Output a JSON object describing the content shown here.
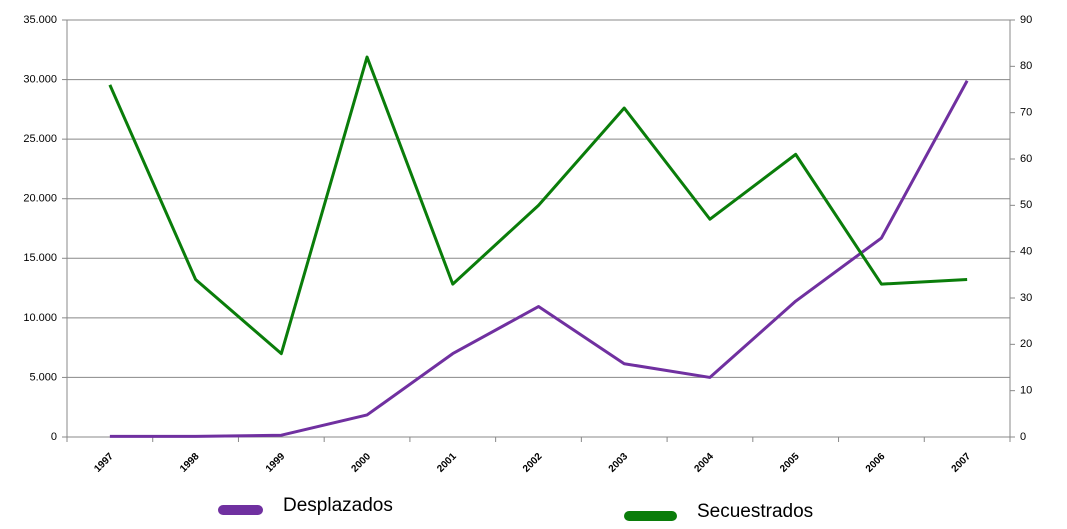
{
  "chart_data": {
    "type": "line",
    "categories": [
      "1997",
      "1998",
      "1999",
      "2000",
      "2001",
      "2002",
      "2003",
      "2004",
      "2005",
      "2006",
      "2007"
    ],
    "series": [
      {
        "name": "Desplazados",
        "color": "#7030a0",
        "values": [
          50,
          50,
          150,
          1850,
          7000,
          10950,
          6150,
          5000,
          11400,
          16700,
          29900
        ]
      },
      {
        "name": "Secuestrados",
        "color": "#0a7d0a",
        "axis": "y2",
        "values": [
          76,
          34,
          18,
          82,
          33,
          50,
          71,
          47,
          61,
          33,
          34
        ]
      }
    ],
    "ylim": [
      0,
      35000
    ],
    "yticks": [
      0,
      {
        "value": 5000,
        "label": "5.000"
      },
      {
        "value": 10000,
        "label": "10.000"
      },
      {
        "value": 15000,
        "label": "15.000"
      },
      {
        "value": 20000,
        "label": "20.000"
      },
      {
        "value": 25000,
        "label": "25.000"
      },
      {
        "value": 30000,
        "label": "30.000"
      },
      {
        "value": 35000,
        "label": "35.000"
      }
    ],
    "y2lim": [
      0,
      90
    ],
    "y2ticks": [
      0,
      10,
      20,
      30,
      40,
      50,
      60,
      70,
      80,
      90
    ],
    "grid": true,
    "legend": "bottom"
  }
}
